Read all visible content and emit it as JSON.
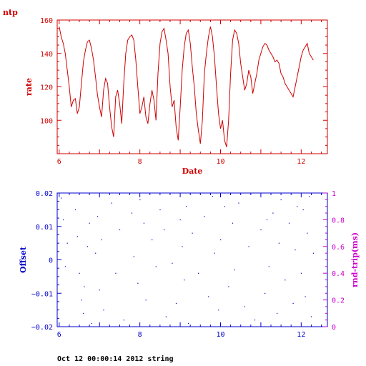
{
  "header_label": "ntp",
  "footer": "Oct 12 00:00:14 2012 string",
  "chart_data": [
    {
      "type": "line",
      "title": "",
      "xlabel": "Date",
      "ylabel": "rate",
      "xlim": [
        5.95,
        12.65
      ],
      "ylim": [
        80,
        160
      ],
      "xticks": [
        6,
        8,
        10,
        12
      ],
      "yticks": [
        100,
        120,
        140,
        160
      ],
      "color": "#d00000",
      "series": [
        {
          "x": [
            6.0,
            6.05,
            6.1,
            6.15,
            6.2,
            6.25,
            6.3,
            6.35,
            6.4,
            6.45,
            6.5,
            6.55,
            6.6,
            6.65,
            6.7,
            6.75,
            6.8,
            6.85,
            6.9,
            6.95,
            7.0,
            7.05,
            7.1,
            7.15,
            7.2,
            7.25,
            7.3,
            7.35,
            7.4,
            7.45,
            7.5,
            7.55,
            7.6,
            7.65,
            7.7,
            7.75,
            7.8,
            7.85,
            7.9,
            7.95,
            8.0,
            8.05,
            8.1,
            8.15,
            8.2,
            8.25,
            8.3,
            8.35,
            8.4,
            8.45,
            8.5,
            8.55,
            8.6,
            8.65,
            8.7,
            8.75,
            8.8,
            8.85,
            8.9,
            8.95,
            9.0,
            9.05,
            9.1,
            9.15,
            9.2,
            9.25,
            9.3,
            9.35,
            9.4,
            9.45,
            9.5,
            9.55,
            9.6,
            9.65,
            9.7,
            9.75,
            9.8,
            9.85,
            9.9,
            9.95,
            10.0,
            10.05,
            10.1,
            10.15,
            10.2,
            10.25,
            10.3,
            10.35,
            10.4,
            10.45,
            10.5,
            10.55,
            10.6,
            10.65,
            10.7,
            10.75,
            10.8,
            10.85,
            10.9,
            10.95,
            11.0,
            11.05,
            11.1,
            11.15,
            11.2,
            11.25,
            11.3,
            11.35,
            11.4,
            11.45,
            11.5,
            11.55,
            11.6,
            11.65,
            11.7,
            11.75,
            11.8,
            11.85,
            11.9,
            11.95,
            12.0,
            12.05,
            12.1,
            12.15,
            12.2,
            12.25,
            12.3
          ],
          "y": [
            156,
            150,
            146,
            140,
            130,
            120,
            108,
            112,
            113,
            104,
            108,
            122,
            135,
            142,
            147,
            148,
            143,
            136,
            126,
            115,
            108,
            102,
            118,
            125,
            122,
            108,
            96,
            90,
            114,
            118,
            110,
            98,
            122,
            140,
            148,
            150,
            151,
            148,
            136,
            120,
            104,
            108,
            114,
            102,
            98,
            110,
            118,
            112,
            100,
            128,
            146,
            153,
            155,
            148,
            140,
            120,
            108,
            112,
            96,
            88,
            108,
            130,
            144,
            152,
            154,
            146,
            132,
            120,
            104,
            94,
            86,
            100,
            128,
            140,
            150,
            156,
            150,
            138,
            120,
            104,
            95,
            100,
            88,
            84,
            100,
            128,
            148,
            154,
            152,
            146,
            134,
            126,
            118,
            122,
            130,
            126,
            116,
            122,
            128,
            136,
            140,
            144,
            146,
            145,
            142,
            140,
            138,
            135,
            136,
            134,
            128,
            126,
            122,
            120,
            118,
            116,
            114,
            120,
            126,
            132,
            138,
            142,
            144,
            146,
            140,
            138,
            136
          ],
          "note": "series sampled"
        }
      ]
    },
    {
      "type": "scatter",
      "title": "",
      "xlabel": "",
      "ylabel": "Offset",
      "y2label": "rnd-trip(ms)",
      "xlim": [
        5.95,
        12.65
      ],
      "ylim": [
        -0.02,
        0.02
      ],
      "y2lim": [
        0,
        1
      ],
      "xticks": [
        6,
        8,
        10,
        12
      ],
      "yticks": [
        -0.02,
        -0.01,
        0,
        0.01,
        0.02
      ],
      "ytick_labels": [
        "−0.02",
        "−0.01",
        "0",
        "0.01",
        "0.02"
      ],
      "y2ticks": [
        0,
        0.2,
        0.4,
        0.6,
        0.8,
        1
      ],
      "y2tick_labels": [
        "0",
        "0.2",
        "0.4",
        "0.6",
        "0.8",
        "1"
      ],
      "color": "#0000cc",
      "axis2_color": "#cc00cc",
      "points": [
        [
          6.05,
          0.0185
        ],
        [
          6.1,
          0.012
        ],
        [
          6.15,
          -0.002
        ],
        [
          6.2,
          0.005
        ],
        [
          6.4,
          0.015
        ],
        [
          6.45,
          0.007
        ],
        [
          6.5,
          -0.004
        ],
        [
          6.55,
          -0.012
        ],
        [
          6.6,
          -0.016
        ],
        [
          6.62,
          -0.008
        ],
        [
          6.7,
          0.004
        ],
        [
          6.75,
          0.011
        ],
        [
          6.8,
          -0.019
        ],
        [
          6.9,
          0.002
        ],
        [
          6.95,
          0.013
        ],
        [
          7.0,
          -0.009
        ],
        [
          7.05,
          0.006
        ],
        [
          7.1,
          -0.015
        ],
        [
          7.3,
          0.017
        ],
        [
          7.4,
          -0.004
        ],
        [
          7.5,
          0.009
        ],
        [
          7.6,
          -0.018
        ],
        [
          7.8,
          0.014
        ],
        [
          7.85,
          0.001
        ],
        [
          7.95,
          -0.007
        ],
        [
          8.0,
          0.018
        ],
        [
          8.1,
          0.011
        ],
        [
          8.15,
          -0.012
        ],
        [
          8.3,
          0.006
        ],
        [
          8.4,
          -0.002
        ],
        [
          8.5,
          0.015
        ],
        [
          8.6,
          0.009
        ],
        [
          8.65,
          -0.017
        ],
        [
          8.8,
          -0.001
        ],
        [
          8.9,
          -0.013
        ],
        [
          9.0,
          0.012
        ],
        [
          9.05,
          0.004
        ],
        [
          9.1,
          -0.006
        ],
        [
          9.15,
          0.016
        ],
        [
          9.2,
          -0.019
        ],
        [
          9.3,
          0.008
        ],
        [
          9.45,
          -0.004
        ],
        [
          9.6,
          0.013
        ],
        [
          9.7,
          -0.011
        ],
        [
          9.8,
          0.019
        ],
        [
          9.85,
          0.002
        ],
        [
          9.95,
          -0.015
        ],
        [
          10.0,
          0.006
        ],
        [
          10.1,
          0.016
        ],
        [
          10.2,
          -0.008
        ],
        [
          10.3,
          0.011
        ],
        [
          10.35,
          -0.003
        ],
        [
          10.45,
          0.017
        ],
        [
          10.6,
          -0.014
        ],
        [
          10.7,
          0.004
        ],
        [
          10.85,
          -0.018
        ],
        [
          11.0,
          0.009
        ],
        [
          11.1,
          -0.01
        ],
        [
          11.15,
          0.012
        ],
        [
          11.2,
          -0.002
        ],
        [
          11.3,
          0.014
        ],
        [
          11.4,
          -0.016
        ],
        [
          11.45,
          0.005
        ],
        [
          11.5,
          0.018
        ],
        [
          11.6,
          -0.006
        ],
        [
          11.7,
          0.011
        ],
        [
          11.8,
          -0.013
        ],
        [
          11.85,
          0.003
        ],
        [
          11.9,
          0.016
        ],
        [
          12.0,
          -0.004
        ],
        [
          12.05,
          0.015
        ],
        [
          12.1,
          -0.011
        ],
        [
          12.15,
          0.008
        ],
        [
          12.2,
          0.019
        ],
        [
          12.25,
          -0.017
        ],
        [
          12.3,
          0.002
        ]
      ]
    }
  ]
}
